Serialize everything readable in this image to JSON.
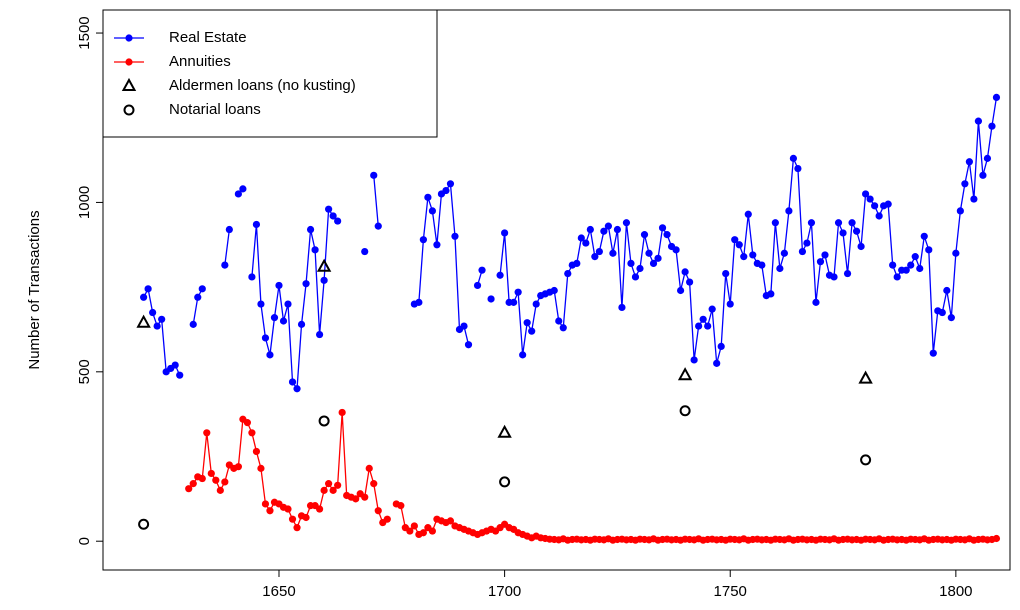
{
  "chart_data": {
    "type": "line",
    "ylabel": "Number of Transactions",
    "xlim": [
      1611,
      1812
    ],
    "ylim": [
      -85,
      1568
    ],
    "xticks": [
      1650,
      1700,
      1750,
      1800
    ],
    "yticks": [
      0,
      500,
      1000,
      1500
    ],
    "legend": "top-left",
    "x": [
      1620,
      1621,
      1622,
      1623,
      1624,
      1625,
      1626,
      1627,
      1628,
      1629,
      1630,
      1631,
      1632,
      1633,
      1634,
      1635,
      1636,
      1637,
      1638,
      1639,
      1640,
      1641,
      1642,
      1643,
      1644,
      1645,
      1646,
      1647,
      1648,
      1649,
      1650,
      1651,
      1652,
      1653,
      1654,
      1655,
      1656,
      1657,
      1658,
      1659,
      1660,
      1661,
      1662,
      1663,
      1664,
      1665,
      1666,
      1667,
      1668,
      1669,
      1670,
      1671,
      1672,
      1673,
      1674,
      1675,
      1676,
      1677,
      1678,
      1679,
      1680,
      1681,
      1682,
      1683,
      1684,
      1685,
      1686,
      1687,
      1688,
      1689,
      1690,
      1691,
      1692,
      1693,
      1694,
      1695,
      1696,
      1697,
      1698,
      1699,
      1700,
      1701,
      1702,
      1703,
      1704,
      1705,
      1706,
      1707,
      1708,
      1709,
      1710,
      1711,
      1712,
      1713,
      1714,
      1715,
      1716,
      1717,
      1718,
      1719,
      1720,
      1721,
      1722,
      1723,
      1724,
      1725,
      1726,
      1727,
      1728,
      1729,
      1730,
      1731,
      1732,
      1733,
      1734,
      1735,
      1736,
      1737,
      1738,
      1739,
      1740,
      1741,
      1742,
      1743,
      1744,
      1745,
      1746,
      1747,
      1748,
      1749,
      1750,
      1751,
      1752,
      1753,
      1754,
      1755,
      1756,
      1757,
      1758,
      1759,
      1760,
      1761,
      1762,
      1763,
      1764,
      1765,
      1766,
      1767,
      1768,
      1769,
      1770,
      1771,
      1772,
      1773,
      1774,
      1775,
      1776,
      1777,
      1778,
      1779,
      1780,
      1781,
      1782,
      1783,
      1784,
      1785,
      1786,
      1787,
      1788,
      1789,
      1790,
      1791,
      1792,
      1793,
      1794,
      1795,
      1796,
      1797,
      1798,
      1799,
      1800,
      1801,
      1802,
      1803,
      1804,
      1805,
      1806,
      1807,
      1808,
      1809
    ],
    "series": [
      {
        "name": "Real Estate",
        "color": "#0000ff",
        "mode": "lines+markers",
        "marker": "dot",
        "values": [
          720,
          745,
          675,
          635,
          655,
          500,
          510,
          520,
          490,
          null,
          null,
          640,
          720,
          745,
          null,
          null,
          null,
          null,
          815,
          920,
          null,
          1025,
          1040,
          null,
          780,
          935,
          700,
          600,
          550,
          660,
          755,
          650,
          700,
          470,
          450,
          640,
          760,
          920,
          860,
          610,
          770,
          980,
          960,
          945,
          null,
          null,
          null,
          null,
          null,
          855,
          null,
          1080,
          930,
          null,
          null,
          null,
          null,
          null,
          null,
          null,
          700,
          705,
          890,
          1015,
          975,
          875,
          1025,
          1035,
          1055,
          900,
          625,
          635,
          580,
          null,
          755,
          800,
          null,
          715,
          null,
          785,
          910,
          705,
          705,
          735,
          550,
          645,
          620,
          700,
          725,
          730,
          735,
          740,
          650,
          630,
          790,
          815,
          820,
          895,
          880,
          920,
          840,
          855,
          915,
          930,
          850,
          920,
          690,
          940,
          820,
          780,
          805,
          905,
          850,
          820,
          835,
          925,
          905,
          870,
          860,
          740,
          795,
          765,
          535,
          635,
          655,
          635,
          685,
          525,
          575,
          790,
          700,
          890,
          875,
          840,
          965,
          845,
          820,
          815,
          725,
          730,
          940,
          805,
          850,
          975,
          1130,
          1100,
          855,
          880,
          940,
          705,
          825,
          845,
          785,
          780,
          940,
          910,
          790,
          940,
          915,
          870,
          1025,
          1010,
          990,
          960,
          990,
          995,
          815,
          780,
          800,
          800,
          815,
          840,
          805,
          900,
          860,
          555,
          680,
          675,
          740,
          660,
          850,
          975,
          1055,
          1120,
          1010,
          1240,
          1080,
          1130,
          1225,
          1310
        ]
      },
      {
        "name": "Annuities",
        "color": "#ff0000",
        "mode": "lines+markers",
        "marker": "dot",
        "values": [
          null,
          null,
          null,
          null,
          null,
          null,
          null,
          null,
          null,
          null,
          155,
          170,
          190,
          185,
          320,
          200,
          180,
          150,
          175,
          225,
          215,
          220,
          360,
          350,
          320,
          265,
          215,
          110,
          90,
          115,
          110,
          100,
          95,
          65,
          40,
          75,
          70,
          105,
          105,
          95,
          150,
          170,
          150,
          165,
          380,
          135,
          130,
          125,
          140,
          130,
          215,
          170,
          90,
          55,
          65,
          null,
          110,
          105,
          40,
          30,
          45,
          20,
          25,
          40,
          30,
          65,
          60,
          55,
          60,
          45,
          40,
          35,
          30,
          25,
          20,
          25,
          30,
          35,
          30,
          40,
          50,
          40,
          35,
          25,
          20,
          15,
          10,
          15,
          10,
          8,
          6,
          5,
          4,
          7,
          3,
          5,
          6,
          4,
          5,
          3,
          6,
          5,
          4,
          7,
          3,
          5,
          6,
          4,
          5,
          3,
          6,
          5,
          4,
          7,
          3,
          5,
          6,
          4,
          5,
          3,
          6,
          5,
          4,
          7,
          3,
          5,
          6,
          4,
          5,
          3,
          6,
          5,
          4,
          7,
          3,
          5,
          6,
          4,
          5,
          3,
          6,
          5,
          4,
          7,
          3,
          5,
          6,
          4,
          5,
          3,
          6,
          5,
          4,
          7,
          3,
          5,
          6,
          4,
          5,
          3,
          6,
          5,
          4,
          7,
          3,
          5,
          6,
          4,
          5,
          3,
          6,
          5,
          4,
          7,
          3,
          5,
          6,
          4,
          5,
          3,
          6,
          5,
          4,
          7,
          3,
          5,
          6,
          4,
          5,
          8
        ]
      },
      {
        "name": "Aldermen loans (no kusting)",
        "color": "#000000",
        "mode": "markers",
        "marker": "triangle",
        "x": [
          1620,
          1660,
          1700,
          1740,
          1780
        ],
        "values": [
          645,
          810,
          320,
          490,
          480
        ]
      },
      {
        "name": "Notarial loans",
        "color": "#000000",
        "mode": "markers",
        "marker": "circle",
        "x": [
          1620,
          1660,
          1700,
          1740,
          1780
        ],
        "values": [
          50,
          355,
          175,
          385,
          240
        ]
      }
    ]
  }
}
